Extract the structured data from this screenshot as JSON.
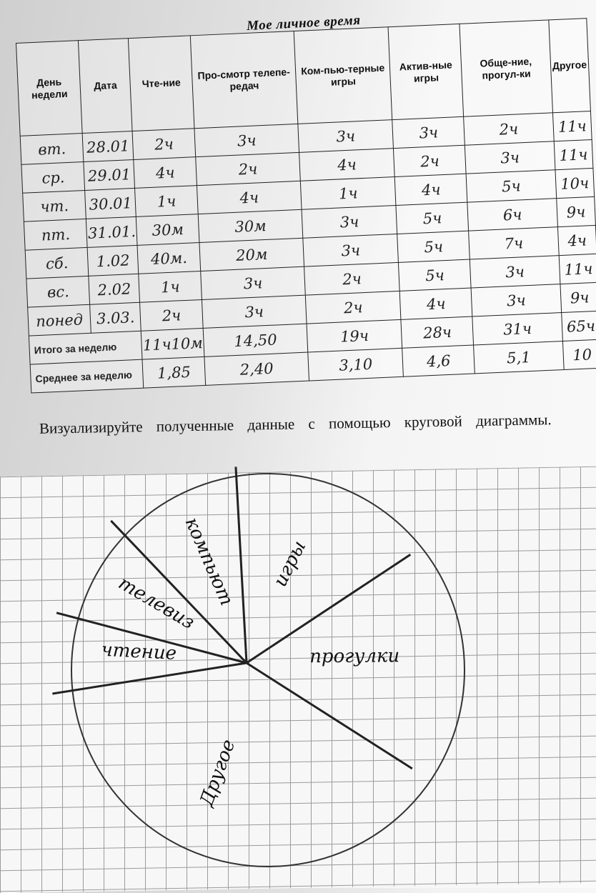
{
  "title": "Мое личное время",
  "table": {
    "headers": [
      "День недели",
      "Дата",
      "Чте-ние",
      "Про-смотр телепе-редач",
      "Ком-пью-терные игры",
      "Актив-ные игры",
      "Обще-ние, прогул-ки",
      "Другое"
    ],
    "rows": [
      [
        "вт.",
        "28.01",
        "2ч",
        "3ч",
        "3ч",
        "3ч",
        "2ч",
        "11ч"
      ],
      [
        "ср.",
        "29.01",
        "4ч",
        "2ч",
        "4ч",
        "2ч",
        "3ч",
        "11ч"
      ],
      [
        "чт.",
        "30.01",
        "1ч",
        "4ч",
        "1ч",
        "4ч",
        "5ч",
        "10ч"
      ],
      [
        "пт.",
        "31.01.",
        "30м",
        "30м",
        "3ч",
        "5ч",
        "6ч",
        "9ч"
      ],
      [
        "сб.",
        "1.02",
        "40м.",
        "20м",
        "3ч",
        "5ч",
        "7ч",
        "4ч"
      ],
      [
        "вс.",
        "2.02",
        "1ч",
        "3ч",
        "2ч",
        "5ч",
        "3ч",
        "11ч"
      ],
      [
        "понед",
        "3.03.",
        "2ч",
        "3ч",
        "2ч",
        "4ч",
        "3ч",
        "9ч"
      ]
    ],
    "total": {
      "label": "Итого за неделю",
      "values": [
        "11ч10м",
        "14,50",
        "19ч",
        "28ч",
        "31ч",
        "65ч"
      ]
    },
    "average": {
      "label": "Среднее за неделю",
      "values": [
        "1,85",
        "2,40",
        "3,10",
        "4,6",
        "5,1",
        "10"
      ]
    }
  },
  "task": "Визуализируйте полученные данные с помощью круговой диаграммы.",
  "chart_data": {
    "type": "pie",
    "labels": [
      "чтение",
      "телевиз",
      "компьют",
      "игры",
      "прогулки",
      "Другое"
    ],
    "values": [
      11.17,
      14.83,
      19,
      28,
      31,
      65
    ],
    "handwritten": true
  }
}
